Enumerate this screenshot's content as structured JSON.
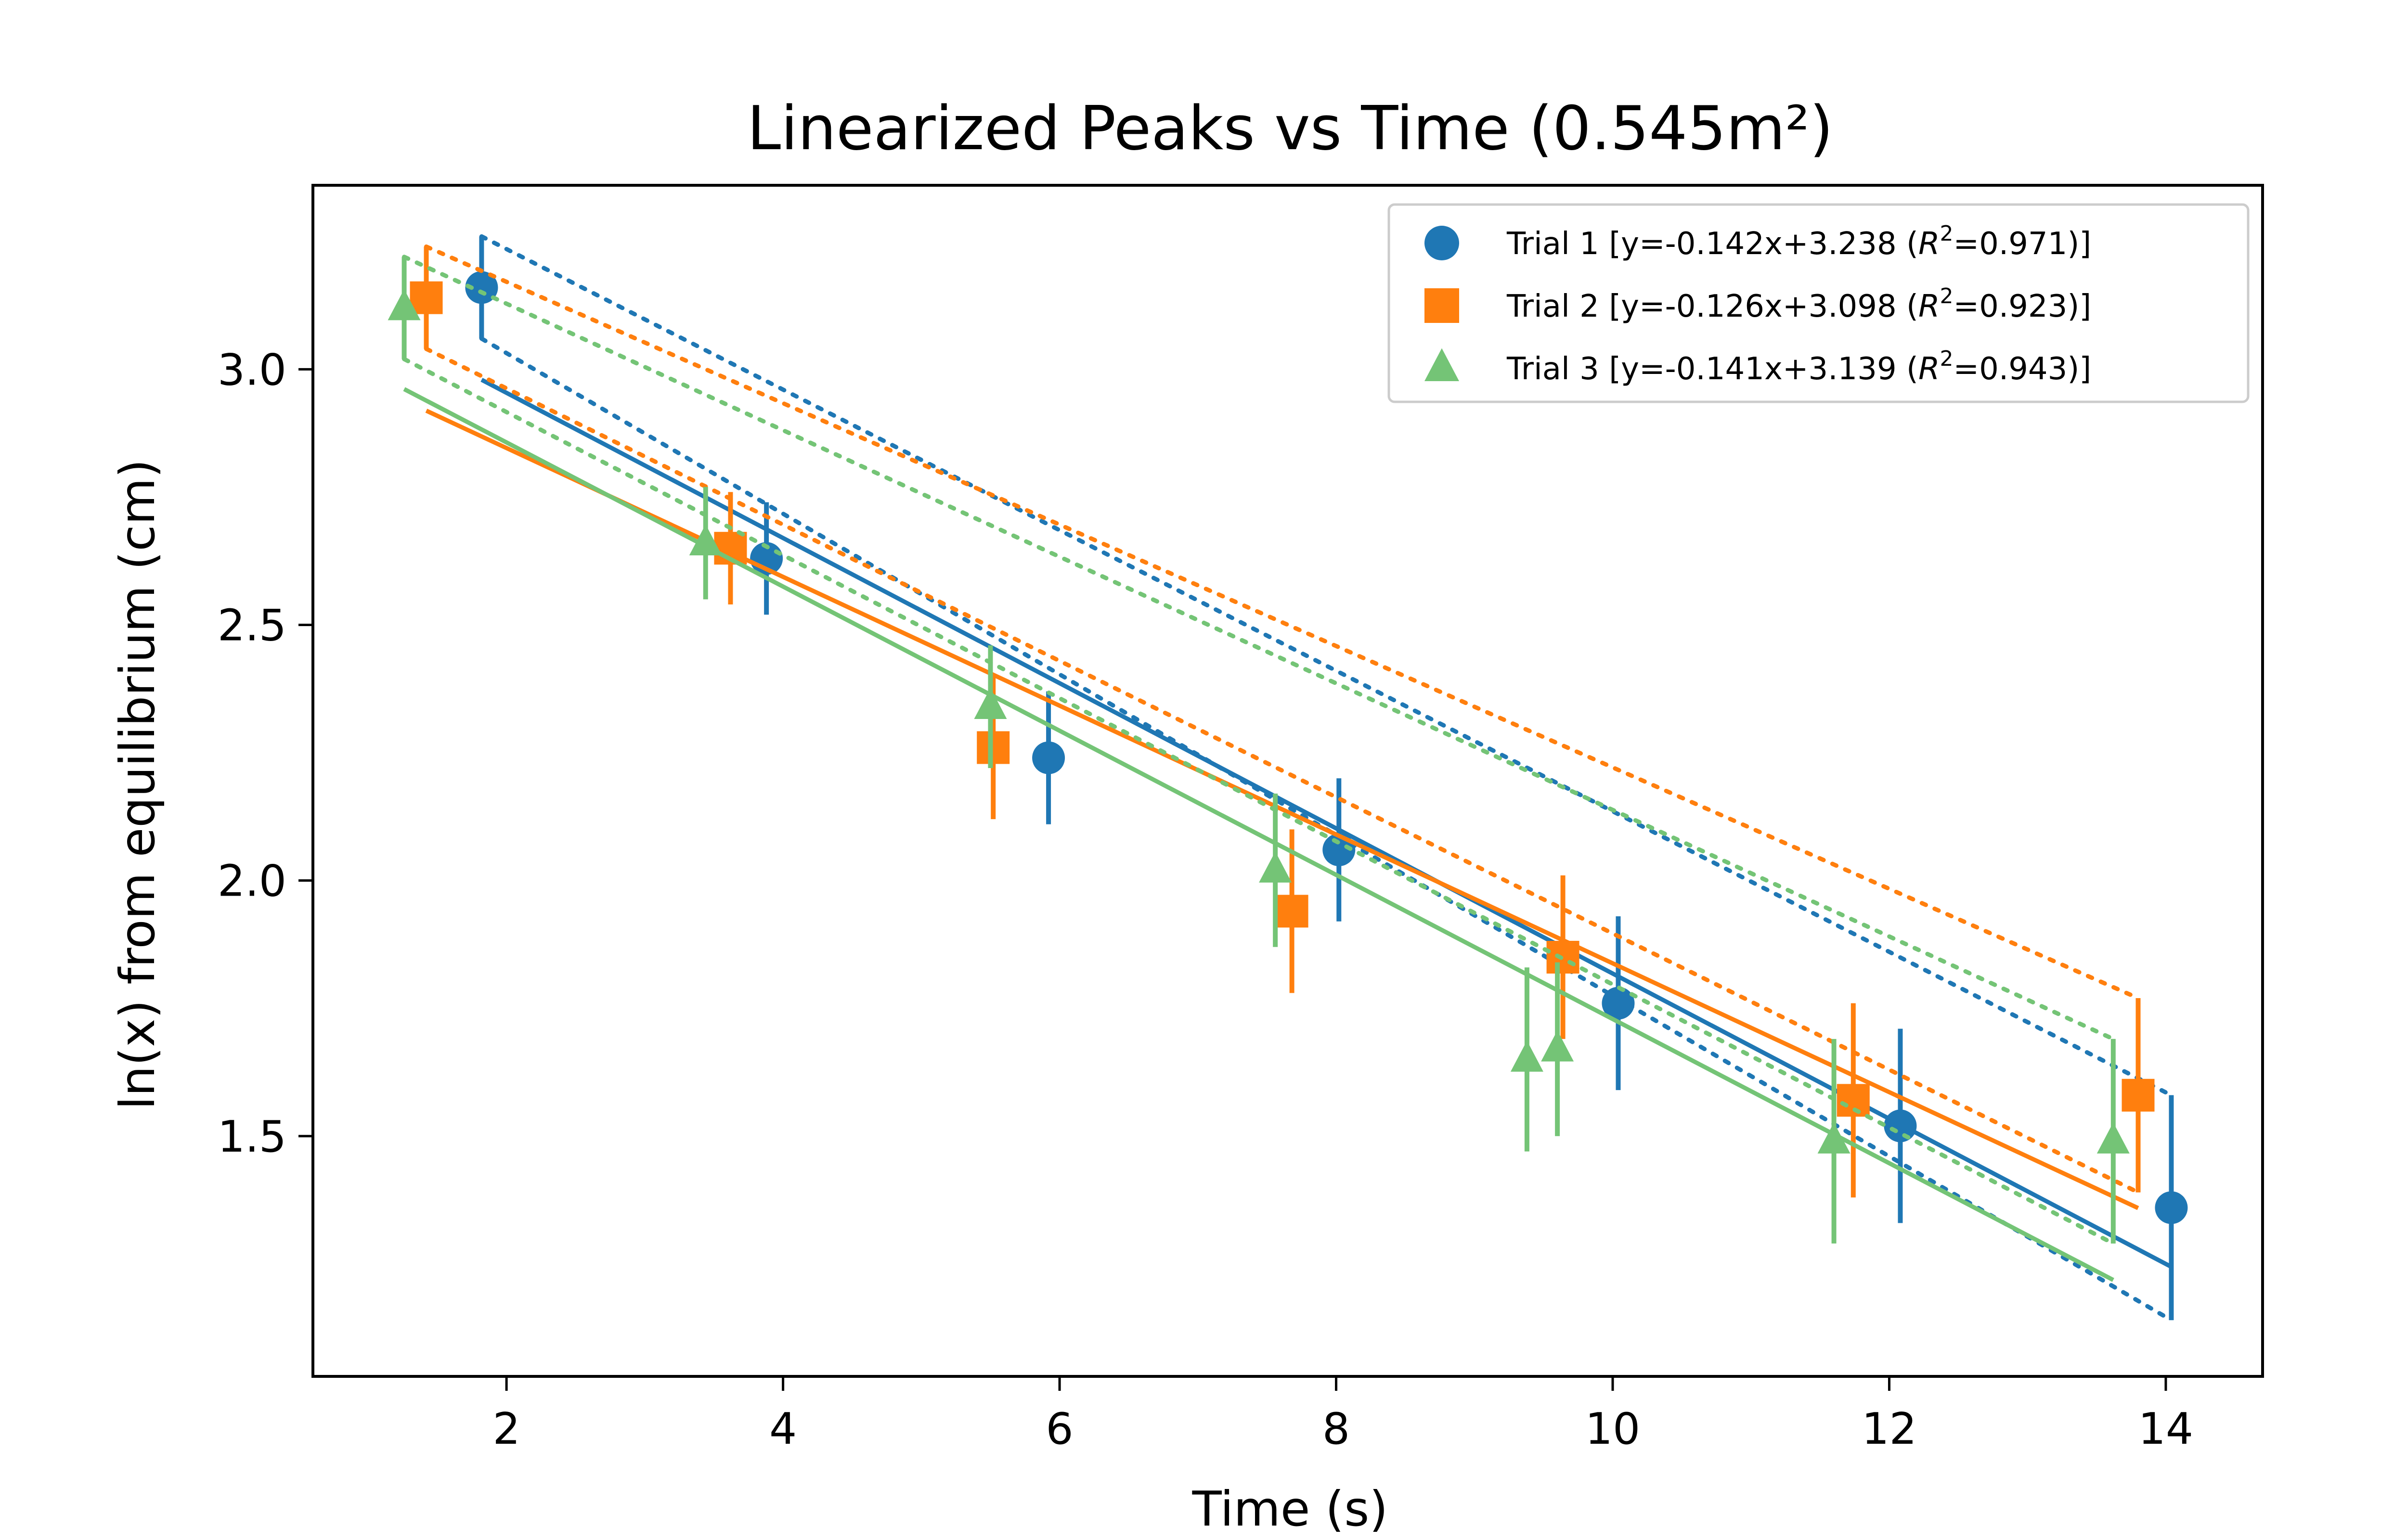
{
  "chart_data": {
    "type": "scatter",
    "title": "Linearized Peaks vs Time (0.545m²)",
    "xlabel": "Time (s)",
    "ylabel": "ln(x) from equilibrium (cm)",
    "xlim": [
      0.6,
      14.7
    ],
    "ylim": [
      1.03,
      3.36
    ],
    "xticks": [
      2,
      4,
      6,
      8,
      10,
      12,
      14
    ],
    "xtick_labels": [
      "2",
      "4",
      "6",
      "8",
      "10",
      "12",
      "14"
    ],
    "yticks": [
      1.5,
      2.0,
      2.5,
      3.0
    ],
    "ytick_labels": [
      "1.5",
      "2.0",
      "2.5",
      "3.0"
    ],
    "grid": false,
    "legend_position": "top-right",
    "series": [
      {
        "name": "Trial 1 [y=-0.142x+3.238 (R²=0.971)]",
        "legend_label": {
          "prefix": "Trial 1 [y=-0.142x+3.238 (",
          "var": "R",
          "sup": "2",
          "suffix": "=0.971)]"
        },
        "color": "#1f77b4",
        "marker": "circle",
        "x": [
          1.82,
          3.88,
          5.92,
          8.02,
          10.04,
          12.08,
          14.04
        ],
        "y": [
          3.16,
          2.63,
          2.24,
          2.06,
          1.76,
          1.52,
          1.36
        ],
        "yerr": [
          0.1,
          0.11,
          0.13,
          0.14,
          0.17,
          0.19,
          0.22
        ],
        "fit": {
          "slope": -0.142,
          "intercept": 3.238,
          "x_range": [
            1.82,
            14.04
          ]
        },
        "bounds": [
          {
            "points": [
              [
                1.82,
                3.26
              ],
              [
                14.04,
                1.58
              ]
            ]
          },
          {
            "points": [
              [
                1.82,
                3.06
              ],
              [
                14.04,
                1.14
              ]
            ]
          }
        ]
      },
      {
        "name": "Trial 2 [y=-0.126x+3.098 (R²=0.923)]",
        "legend_label": {
          "prefix": "Trial 2 [y=-0.126x+3.098 (",
          "var": "R",
          "sup": "2",
          "suffix": "=0.923)]"
        },
        "color": "#ff7f0e",
        "marker": "square",
        "x": [
          1.42,
          3.62,
          5.52,
          7.68,
          9.64,
          11.74,
          13.8
        ],
        "y": [
          3.14,
          2.65,
          2.26,
          1.94,
          1.85,
          1.57,
          1.58
        ],
        "yerr": [
          0.1,
          0.11,
          0.14,
          0.16,
          0.16,
          0.19,
          0.19
        ],
        "fit": {
          "slope": -0.126,
          "intercept": 3.098,
          "x_range": [
            1.42,
            13.8
          ]
        },
        "bounds": [
          {
            "points": [
              [
                1.42,
                3.24
              ],
              [
                13.8,
                1.77
              ]
            ]
          },
          {
            "points": [
              [
                1.42,
                3.04
              ],
              [
                13.8,
                1.39
              ]
            ]
          }
        ]
      },
      {
        "name": "Trial 3 [y=-0.141x+3.139 (R²=0.943)]",
        "legend_label": {
          "prefix": "Trial 3 [y=-0.141x+3.139 (",
          "var": "R",
          "sup": "2",
          "suffix": "=0.943)]"
        },
        "color": "#74c476",
        "marker": "triangle",
        "x": [
          1.26,
          3.44,
          5.5,
          7.56,
          9.38,
          9.6,
          11.6,
          13.62
        ],
        "y": [
          3.12,
          2.66,
          2.34,
          2.02,
          1.65,
          1.67,
          1.49,
          1.49
        ],
        "yerr": [
          0.1,
          0.11,
          0.12,
          0.15,
          0.18,
          0.17,
          0.2,
          0.2
        ],
        "fit": {
          "slope": -0.141,
          "intercept": 3.139,
          "x_range": [
            1.26,
            13.62
          ]
        },
        "bounds": [
          {
            "points": [
              [
                1.26,
                3.22
              ],
              [
                13.62,
                1.69
              ]
            ]
          },
          {
            "points": [
              [
                1.26,
                3.02
              ],
              [
                13.62,
                1.29
              ]
            ]
          }
        ]
      }
    ]
  }
}
